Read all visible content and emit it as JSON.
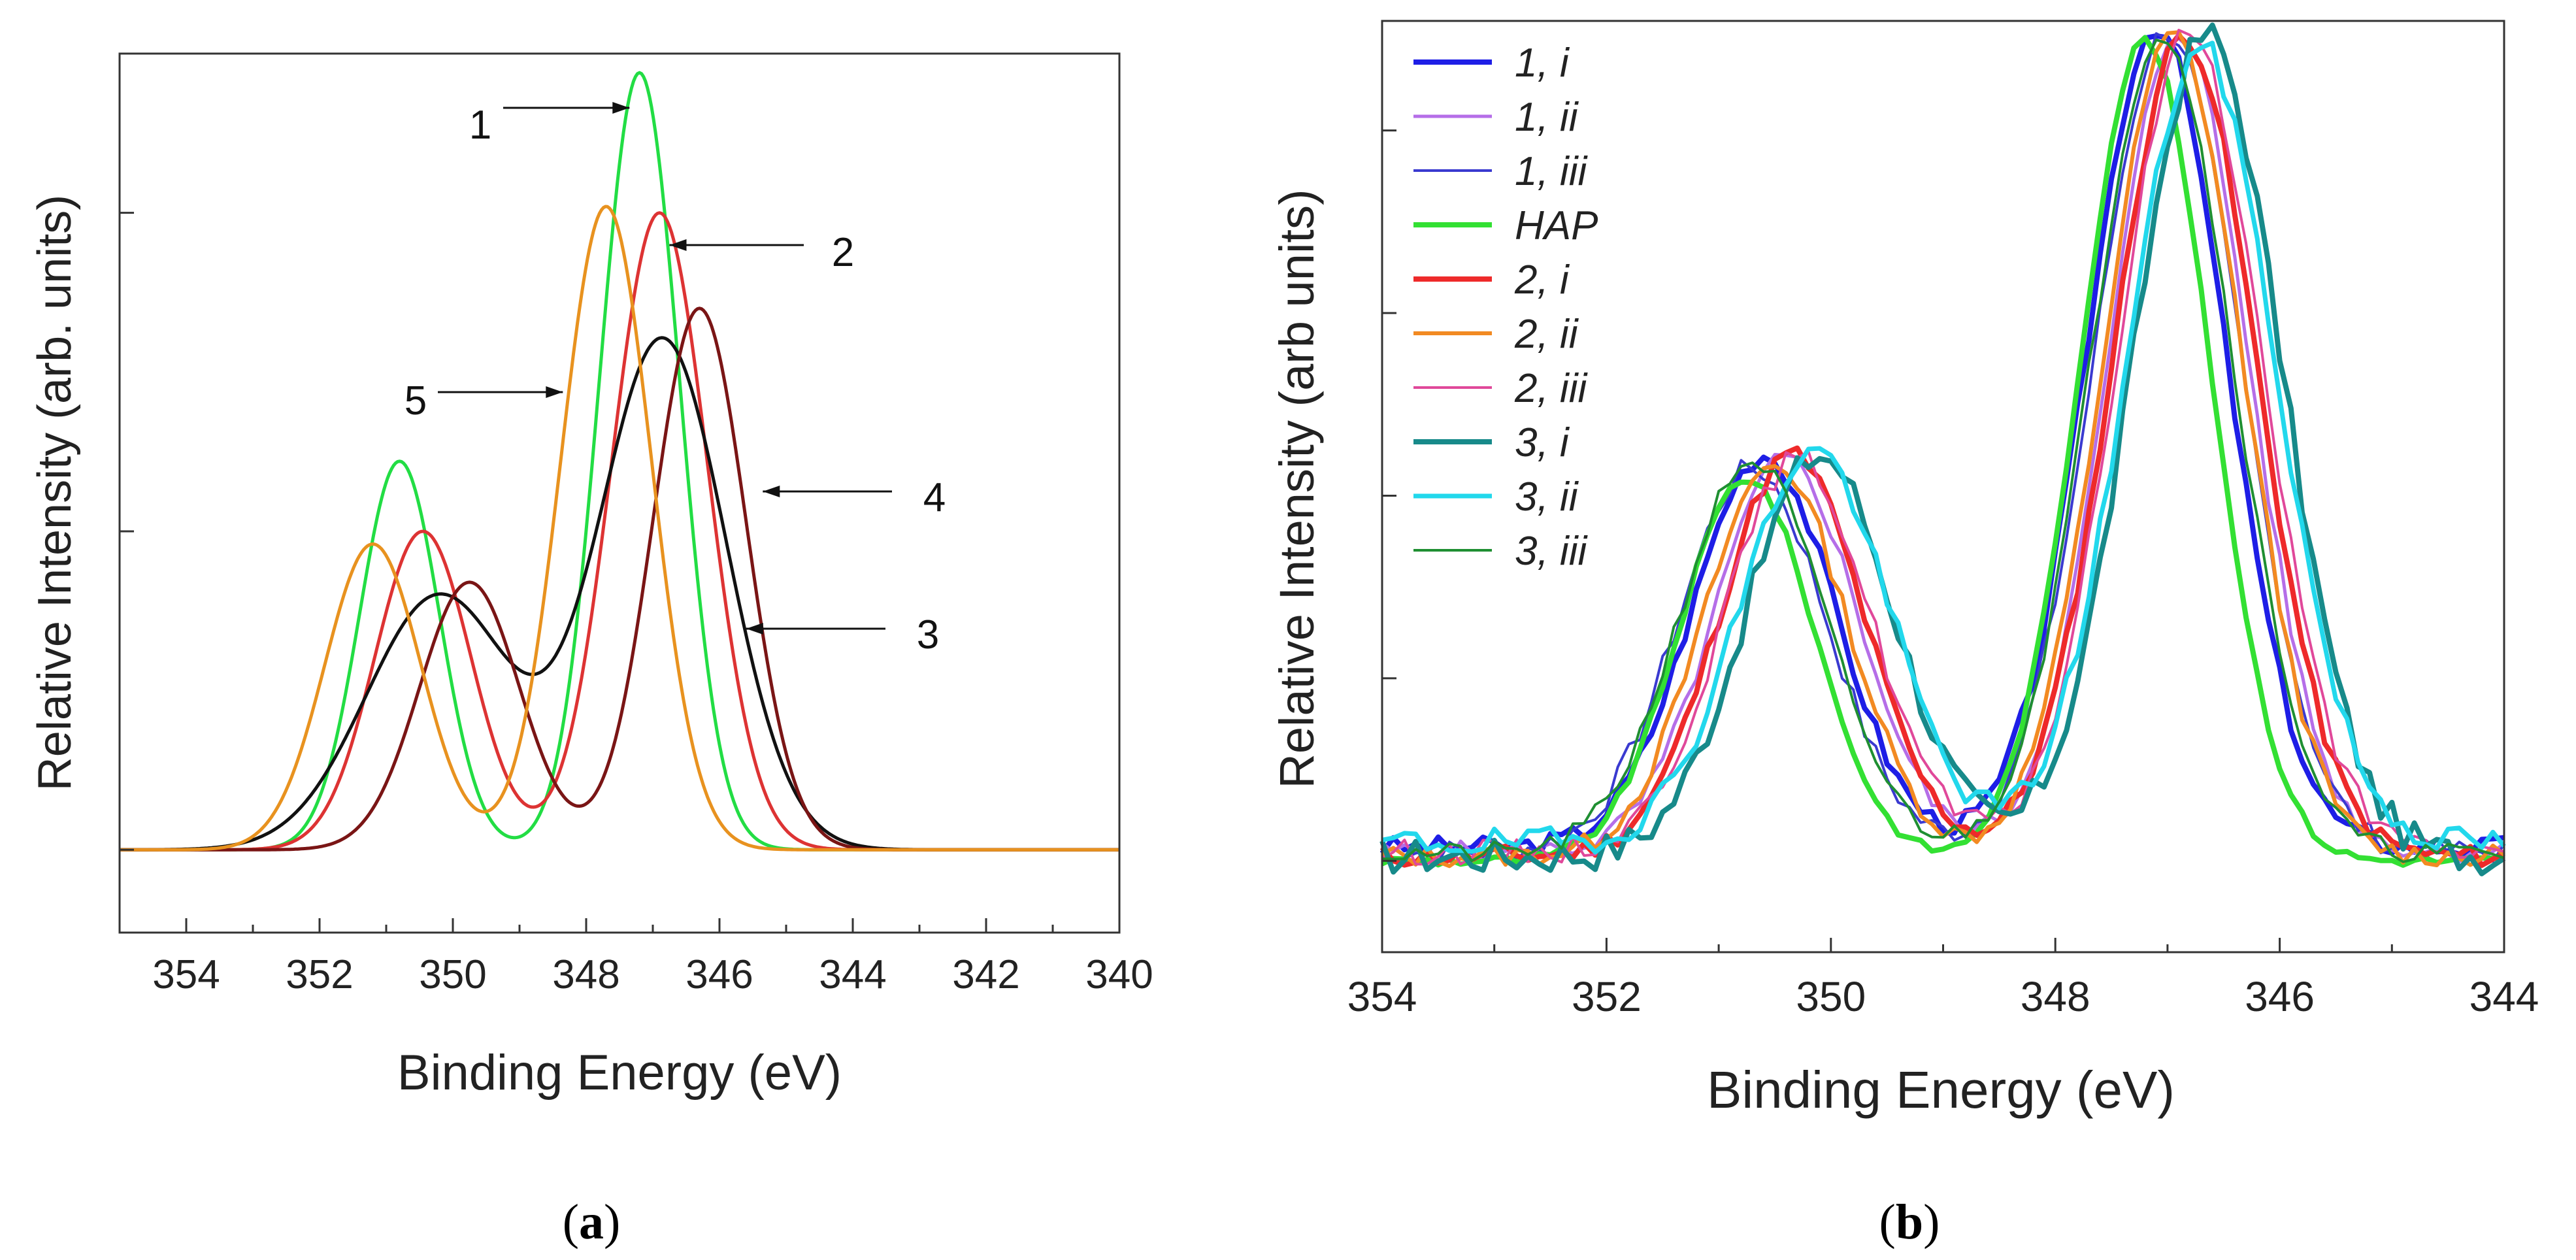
{
  "chart_data": [
    {
      "panel": "a",
      "type": "line",
      "title": "",
      "xlabel": "Binding Energy (eV)",
      "ylabel": "Relative Intensity (arb. units)",
      "xlim": [
        355,
        340
      ],
      "ylim": [
        -0.13,
        1.25
      ],
      "x_reversed": true,
      "xticks": [
        354,
        352,
        350,
        348,
        346,
        344,
        342,
        340
      ],
      "xtick_labels": [
        "354",
        "352",
        "350",
        "348",
        "346",
        "344",
        "342",
        "340"
      ],
      "yticks": [
        0,
        0.5,
        1.0
      ],
      "ytick_labels": [
        "",
        "",
        ""
      ],
      "panel_label": "(a)",
      "panel_letter": "a",
      "series": [
        {
          "name": "1",
          "color": "#22dd44",
          "peaks": [
            {
              "c": 347.2,
              "a": 1.22,
              "s": 0.6
            },
            {
              "c": 350.8,
              "a": 0.61,
              "s": 0.6
            }
          ]
        },
        {
          "name": "2",
          "color": "#dd3333",
          "peaks": [
            {
              "c": 346.9,
              "a": 1.0,
              "s": 0.72
            },
            {
              "c": 350.45,
              "a": 0.5,
              "s": 0.72
            }
          ]
        },
        {
          "name": "3",
          "color": "#111111",
          "peaks": [
            {
              "c": 346.85,
              "a": 0.8,
              "s": 0.95
            },
            {
              "c": 350.2,
              "a": 0.4,
              "s": 1.1
            }
          ]
        },
        {
          "name": "4",
          "color": "#7a1515",
          "peaks": [
            {
              "c": 346.3,
              "a": 0.85,
              "s": 0.7
            },
            {
              "c": 349.75,
              "a": 0.42,
              "s": 0.75
            }
          ]
        },
        {
          "name": "5",
          "color": "#e8921f",
          "peaks": [
            {
              "c": 347.7,
              "a": 1.01,
              "s": 0.68
            },
            {
              "c": 351.2,
              "a": 0.48,
              "s": 0.72
            }
          ]
        }
      ],
      "annotations": [
        {
          "text": "1",
          "target": [
            347.35,
            1.17
          ]
        },
        {
          "text": "2",
          "target": [
            346.75,
            0.95
          ]
        },
        {
          "text": "5",
          "target": [
            348.35,
            0.72
          ]
        },
        {
          "text": "4",
          "target": [
            345.35,
            0.56
          ]
        },
        {
          "text": "3",
          "target": [
            345.6,
            0.35
          ]
        }
      ]
    },
    {
      "panel": "b",
      "type": "line",
      "title": "",
      "xlabel": "Binding Energy (eV)",
      "ylabel": "Relative Intensity (arb units)",
      "xlim": [
        354,
        344
      ],
      "ylim": [
        -0.1,
        0.92
      ],
      "x_reversed": true,
      "xticks": [
        354,
        352,
        350,
        348,
        346,
        344
      ],
      "xtick_labels": [
        "354",
        "352",
        "350",
        "348",
        "346",
        "344"
      ],
      "yticks": [
        0,
        0.2,
        0.4,
        0.6,
        0.8
      ],
      "ytick_labels": [
        "",
        "",
        "",
        "",
        ""
      ],
      "panel_label": "(b)",
      "panel_letter": "b",
      "legend_position": "top-left",
      "series": [
        {
          "name": "1, i",
          "color": "#1e1ee6",
          "width": 8,
          "peaks": [
            {
              "c": 347.1,
              "a": 0.9,
              "s": 0.62
            },
            {
              "c": 350.6,
              "a": 0.43,
              "s": 0.64
            }
          ],
          "baseline": 0.015,
          "noise": 0.012,
          "seed": 3
        },
        {
          "name": "1, ii",
          "color": "#b56ee8",
          "width": 5,
          "peaks": [
            {
              "c": 346.9,
              "a": 0.9,
              "s": 0.62
            },
            {
              "c": 350.4,
              "a": 0.43,
              "s": 0.64
            }
          ],
          "baseline": 0.01,
          "noise": 0.012,
          "seed": 5
        },
        {
          "name": "1, iii",
          "color": "#3a3ad0",
          "width": 4,
          "peaks": [
            {
              "c": 347.0,
              "a": 0.9,
              "s": 0.65
            },
            {
              "c": 350.7,
              "a": 0.42,
              "s": 0.66
            }
          ],
          "baseline": 0.01,
          "noise": 0.014,
          "seed": 7
        },
        {
          "name": "HAP",
          "color": "#33e033",
          "width": 8,
          "peaks": [
            {
              "c": 347.2,
              "a": 0.9,
              "s": 0.58
            },
            {
              "c": 350.75,
              "a": 0.42,
              "s": 0.6
            }
          ],
          "baseline": 0.0,
          "noise": 0.006,
          "seed": 9
        },
        {
          "name": "2, i",
          "color": "#ee2a2a",
          "width": 8,
          "peaks": [
            {
              "c": 346.85,
              "a": 0.9,
              "s": 0.64
            },
            {
              "c": 350.35,
              "a": 0.44,
              "s": 0.64
            }
          ],
          "baseline": 0.005,
          "noise": 0.012,
          "seed": 11
        },
        {
          "name": "2, ii",
          "color": "#f28a22",
          "width": 6,
          "peaks": [
            {
              "c": 346.95,
              "a": 0.9,
              "s": 0.62
            },
            {
              "c": 350.5,
              "a": 0.43,
              "s": 0.64
            }
          ],
          "baseline": 0.005,
          "noise": 0.012,
          "seed": 13
        },
        {
          "name": "2, iii",
          "color": "#e0489a",
          "width": 4,
          "peaks": [
            {
              "c": 346.8,
              "a": 0.9,
              "s": 0.64
            },
            {
              "c": 350.3,
              "a": 0.43,
              "s": 0.65
            }
          ],
          "baseline": 0.01,
          "noise": 0.014,
          "seed": 15
        },
        {
          "name": "3, i",
          "color": "#178a8a",
          "width": 8,
          "peaks": [
            {
              "c": 346.65,
              "a": 0.9,
              "s": 0.66
            },
            {
              "c": 350.1,
              "a": 0.44,
              "s": 0.66
            }
          ],
          "baseline": 0.005,
          "noise": 0.02,
          "seed": 17
        },
        {
          "name": "3, ii",
          "color": "#22d8ec",
          "width": 7,
          "peaks": [
            {
              "c": 346.7,
              "a": 0.87,
              "s": 0.66
            },
            {
              "c": 350.15,
              "a": 0.43,
              "s": 0.66
            }
          ],
          "baseline": 0.02,
          "noise": 0.016,
          "seed": 19
        },
        {
          "name": "3, iii",
          "color": "#1f8f32",
          "width": 4,
          "peaks": [
            {
              "c": 347.05,
              "a": 0.9,
              "s": 0.63
            },
            {
              "c": 350.7,
              "a": 0.43,
              "s": 0.65
            }
          ],
          "baseline": 0.008,
          "noise": 0.012,
          "seed": 21
        }
      ]
    }
  ]
}
